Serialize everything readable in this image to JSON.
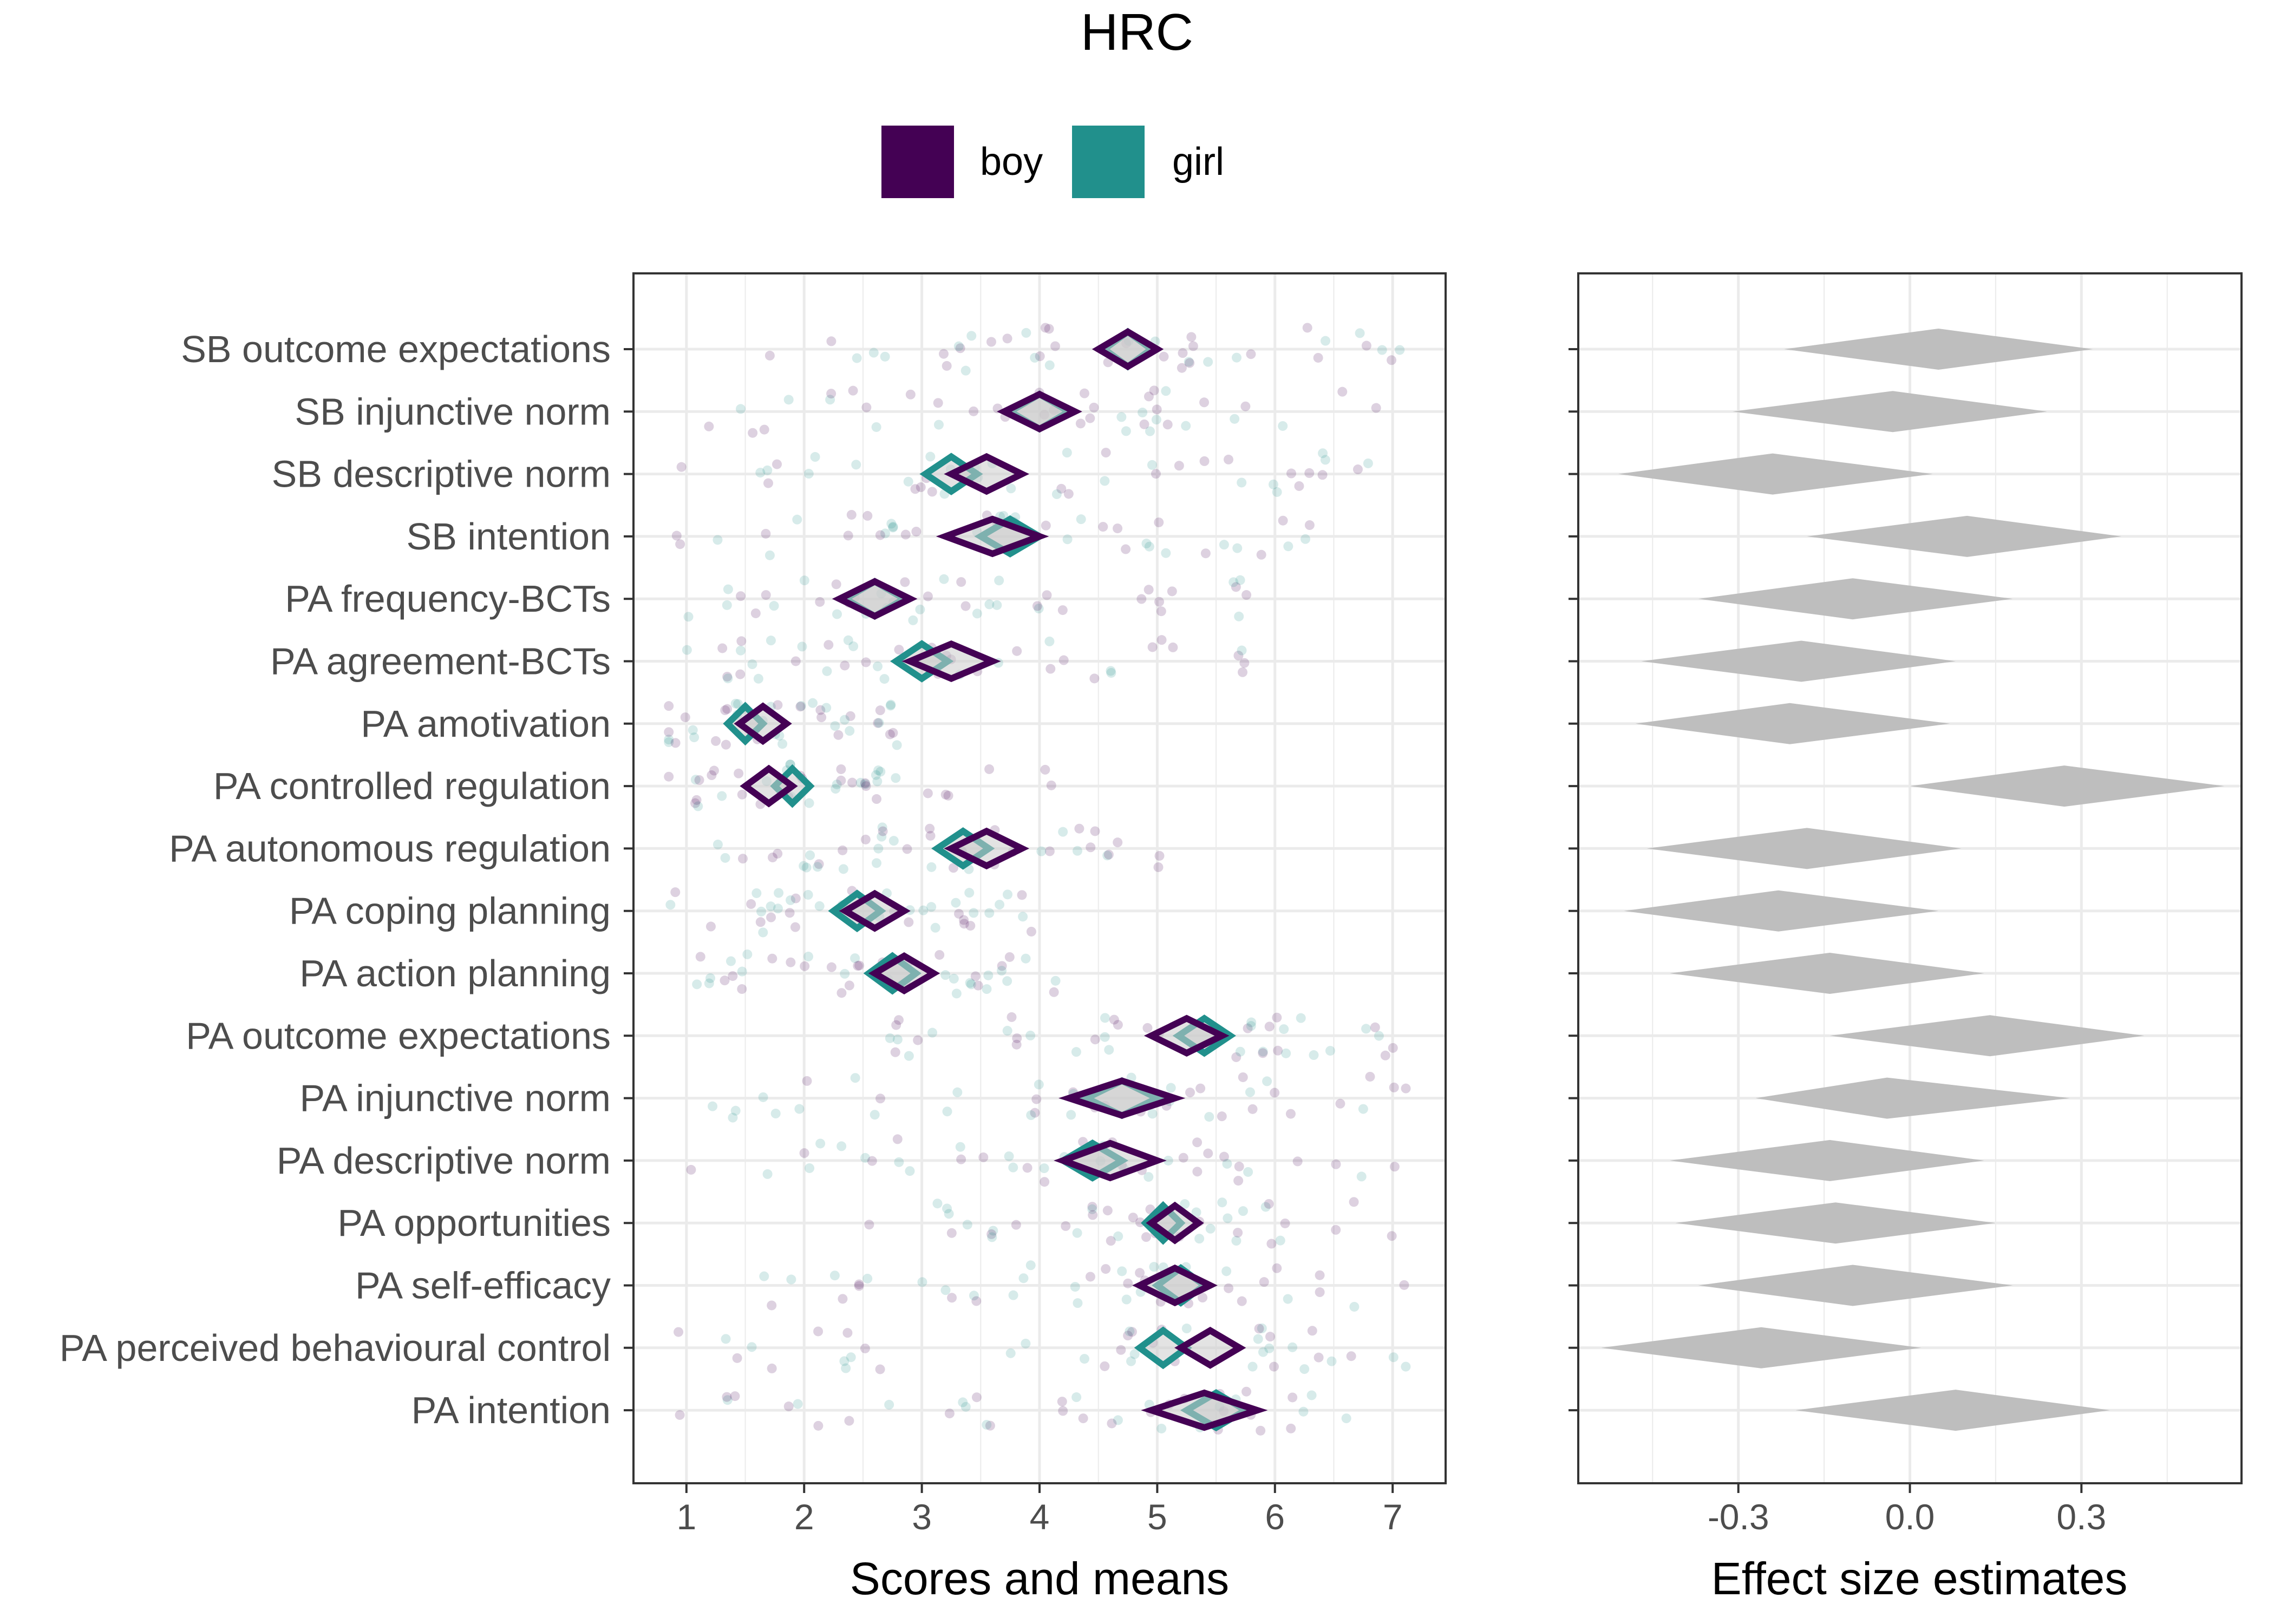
{
  "title": "HRC",
  "colors": {
    "boy": "#440154",
    "girl": "#21908C",
    "effect": "#bebebe",
    "grid": "#ebebeb",
    "panel_border": "#333333"
  },
  "legend": [
    {
      "name": "boy",
      "color": "#440154"
    },
    {
      "name": "girl",
      "color": "#21908C"
    }
  ],
  "chart_data": [
    {
      "type": "scatter",
      "title": "",
      "xlabel": "Scores and means",
      "ylabel": "",
      "xlim": [
        0.55,
        7.45
      ],
      "x_ticks": [
        1,
        2,
        3,
        4,
        5,
        6,
        7
      ],
      "grid": true,
      "legend_position": "top",
      "categories": [
        "SB outcome expectations",
        "SB injunctive norm",
        "SB descriptive norm",
        "SB intention",
        "PA frequency-BCTs",
        "PA agreement-BCTs",
        "PA amotivation",
        "PA controlled regulation",
        "PA autonomous regulation",
        "PA coping planning",
        "PA action planning",
        "PA outcome expectations",
        "PA injunctive norm",
        "PA descriptive norm",
        "PA opportunities",
        "PA self-efficacy",
        "PA perceived behavioural control",
        "PA intention"
      ],
      "series": [
        {
          "name": "boy",
          "means": [
            4.75,
            4.0,
            3.55,
            3.6,
            2.6,
            3.25,
            1.65,
            1.7,
            3.55,
            2.6,
            2.85,
            5.25,
            4.7,
            4.6,
            5.15,
            5.15,
            5.45,
            5.4
          ],
          "half_width": [
            0.25,
            0.3,
            0.3,
            0.4,
            0.3,
            0.35,
            0.2,
            0.2,
            0.3,
            0.25,
            0.25,
            0.3,
            0.45,
            0.4,
            0.2,
            0.3,
            0.25,
            0.45
          ]
        },
        {
          "name": "girl",
          "means": [
            4.75,
            4.0,
            3.25,
            3.75,
            2.6,
            3.0,
            1.5,
            1.9,
            3.35,
            2.45,
            2.75,
            5.4,
            4.7,
            4.45,
            5.05,
            5.2,
            5.05,
            5.5
          ],
          "half_width": [
            0.2,
            0.25,
            0.22,
            0.25,
            0.25,
            0.22,
            0.15,
            0.15,
            0.22,
            0.2,
            0.2,
            0.22,
            0.3,
            0.25,
            0.15,
            0.2,
            0.2,
            0.25
          ]
        }
      ],
      "raw_ranges": [
        [
          1.5,
          7.1
        ],
        [
          1,
          7.1
        ],
        [
          1,
          7.1
        ],
        [
          1,
          7.1
        ],
        [
          1,
          6
        ],
        [
          1,
          6
        ],
        [
          1,
          3
        ],
        [
          1,
          4
        ],
        [
          1,
          5.1
        ],
        [
          1,
          4.1
        ],
        [
          1,
          4.1
        ],
        [
          2.5,
          7.1
        ],
        [
          1,
          7.1
        ],
        [
          1,
          7.1
        ],
        [
          2.5,
          7.1
        ],
        [
          1.5,
          7.1
        ],
        [
          1,
          7.1
        ],
        [
          1,
          7.1
        ]
      ]
    },
    {
      "type": "scatter",
      "title": "",
      "xlabel": "Effect size estimates",
      "ylabel": "",
      "xlim": [
        -0.58,
        0.58
      ],
      "x_ticks": [
        -0.3,
        0.0,
        0.3
      ],
      "x_tick_labels": [
        "-0.3",
        "0.0",
        "0.3"
      ],
      "grid": true,
      "estimates": [
        0.05,
        -0.03,
        -0.24,
        0.1,
        -0.1,
        -0.19,
        -0.21,
        0.27,
        -0.18,
        -0.23,
        -0.14,
        0.14,
        -0.04,
        -0.14,
        -0.13,
        -0.1,
        -0.26,
        0.08
      ],
      "ci_lower": [
        -0.22,
        -0.31,
        -0.51,
        -0.18,
        -0.37,
        -0.47,
        -0.48,
        0.0,
        -0.46,
        -0.5,
        -0.42,
        -0.14,
        -0.27,
        -0.42,
        -0.41,
        -0.37,
        -0.54,
        -0.2
      ],
      "ci_upper": [
        0.32,
        0.24,
        0.04,
        0.37,
        0.18,
        0.08,
        0.07,
        0.55,
        0.09,
        0.05,
        0.13,
        0.41,
        0.28,
        0.13,
        0.15,
        0.18,
        0.02,
        0.35
      ]
    }
  ]
}
